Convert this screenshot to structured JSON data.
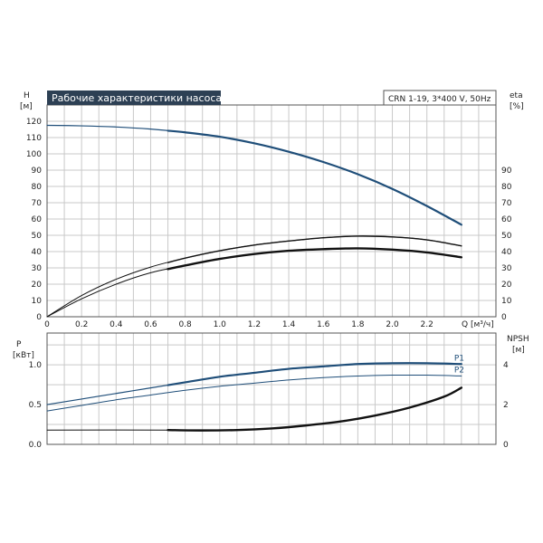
{
  "chart_data": [
    {
      "type": "line",
      "title": "Рабочие характеристики насоса",
      "model": "CRN 1-19, 3*400 V, 50Hz",
      "ylabel_left": "H",
      "ylabel_left_unit": "[м]",
      "ylabel_right": "eta",
      "ylabel_right_unit": "[%]",
      "xlabel": "Q [м³/ч]",
      "xlim": [
        0,
        2.6
      ],
      "ylim": [
        0,
        130
      ],
      "ylim_right": [
        0,
        130
      ],
      "grid": true,
      "x_ticks": [
        0,
        0.2,
        0.4,
        0.6,
        0.8,
        1.0,
        1.2,
        1.4,
        1.6,
        1.8,
        2.0,
        2.2
      ],
      "x_tick_labels": [
        "0",
        "0.2",
        "0.4",
        "0.6",
        "0.8",
        "1.0",
        "1.2",
        "1.4",
        "1.6",
        "1.8",
        "2.0",
        "2.2"
      ],
      "y_ticks_left": [
        0,
        10,
        20,
        30,
        40,
        50,
        60,
        70,
        80,
        90,
        100,
        110,
        120
      ],
      "y_ticks_right": [
        0,
        10,
        20,
        30,
        40,
        50,
        60,
        70,
        80,
        90
      ],
      "series": [
        {
          "key": "head",
          "axis": "left",
          "color": "#1f4e79",
          "width": 1.2,
          "bold_from": 0.7,
          "bold_width": 2.2,
          "x": [
            0,
            0.2,
            0.4,
            0.6,
            0.8,
            1.0,
            1.2,
            1.4,
            1.6,
            1.8,
            2.0,
            2.2,
            2.4
          ],
          "y": [
            117.5,
            117.2,
            116.5,
            115.2,
            113.2,
            110.5,
            106.5,
            101.3,
            95.0,
            87.5,
            78.5,
            68.0,
            56.5
          ]
        },
        {
          "key": "eta-upper",
          "axis": "right",
          "color": "#111111",
          "width": 1.0,
          "bold_from": 0.7,
          "bold_width": 1.4,
          "x": [
            0,
            0.2,
            0.4,
            0.6,
            0.8,
            1.0,
            1.2,
            1.4,
            1.6,
            1.8,
            2.0,
            2.2,
            2.4
          ],
          "y": [
            0,
            13,
            23,
            30.5,
            36,
            40.5,
            44,
            46.5,
            48.5,
            49.5,
            49.0,
            47.2,
            43.5
          ]
        },
        {
          "key": "eta-lower",
          "axis": "right",
          "color": "#111111",
          "width": 1.0,
          "bold_from": 0.7,
          "bold_width": 2.4,
          "x": [
            0,
            0.2,
            0.4,
            0.6,
            0.8,
            1.0,
            1.2,
            1.4,
            1.6,
            1.8,
            2.0,
            2.2,
            2.4
          ],
          "y": [
            0,
            11,
            20,
            27,
            31.5,
            35.5,
            38.5,
            40.5,
            41.5,
            42.0,
            41.2,
            39.5,
            36.5
          ]
        }
      ]
    },
    {
      "type": "line",
      "ylabel_left": "P",
      "ylabel_left_unit": "[кВт]",
      "ylabel_right": "NPSH",
      "ylabel_right_unit": "[м]",
      "xlim": [
        0,
        2.6
      ],
      "ylim": [
        0,
        1.4
      ],
      "ylim_right": [
        0,
        5.6
      ],
      "grid": true,
      "y_ticks_left": [
        0,
        0.5,
        1.0
      ],
      "y_tick_labels_left": [
        "0.0",
        "0.5",
        "1.0"
      ],
      "y_ticks_right": [
        0,
        2,
        4
      ],
      "series": [
        {
          "key": "p1",
          "name": "P1",
          "axis": "left",
          "color": "#1f4e79",
          "width": 1.2,
          "bold_from": 0.7,
          "bold_width": 2.2,
          "x": [
            0,
            0.2,
            0.4,
            0.6,
            0.8,
            1.0,
            1.2,
            1.4,
            1.6,
            1.8,
            2.0,
            2.2,
            2.4
          ],
          "y": [
            0.5,
            0.57,
            0.64,
            0.71,
            0.78,
            0.85,
            0.9,
            0.95,
            0.98,
            1.01,
            1.02,
            1.02,
            1.01
          ]
        },
        {
          "key": "p2",
          "name": "P2",
          "axis": "left",
          "color": "#1f4e79",
          "width": 1.0,
          "x": [
            0,
            0.2,
            0.4,
            0.6,
            0.8,
            1.0,
            1.2,
            1.4,
            1.6,
            1.8,
            2.0,
            2.2,
            2.4
          ],
          "y": [
            0.42,
            0.49,
            0.56,
            0.62,
            0.68,
            0.73,
            0.77,
            0.81,
            0.84,
            0.86,
            0.87,
            0.87,
            0.86
          ]
        },
        {
          "key": "npsh",
          "axis": "right",
          "color": "#111111",
          "width": 1.0,
          "bold_from": 0.7,
          "bold_width": 2.4,
          "x": [
            0,
            0.7,
            0.9,
            1.1,
            1.3,
            1.5,
            1.7,
            1.9,
            2.1,
            2.3,
            2.4
          ],
          "y": [
            0.72,
            0.72,
            0.7,
            0.72,
            0.8,
            0.95,
            1.15,
            1.45,
            1.85,
            2.4,
            2.85
          ]
        }
      ]
    }
  ]
}
